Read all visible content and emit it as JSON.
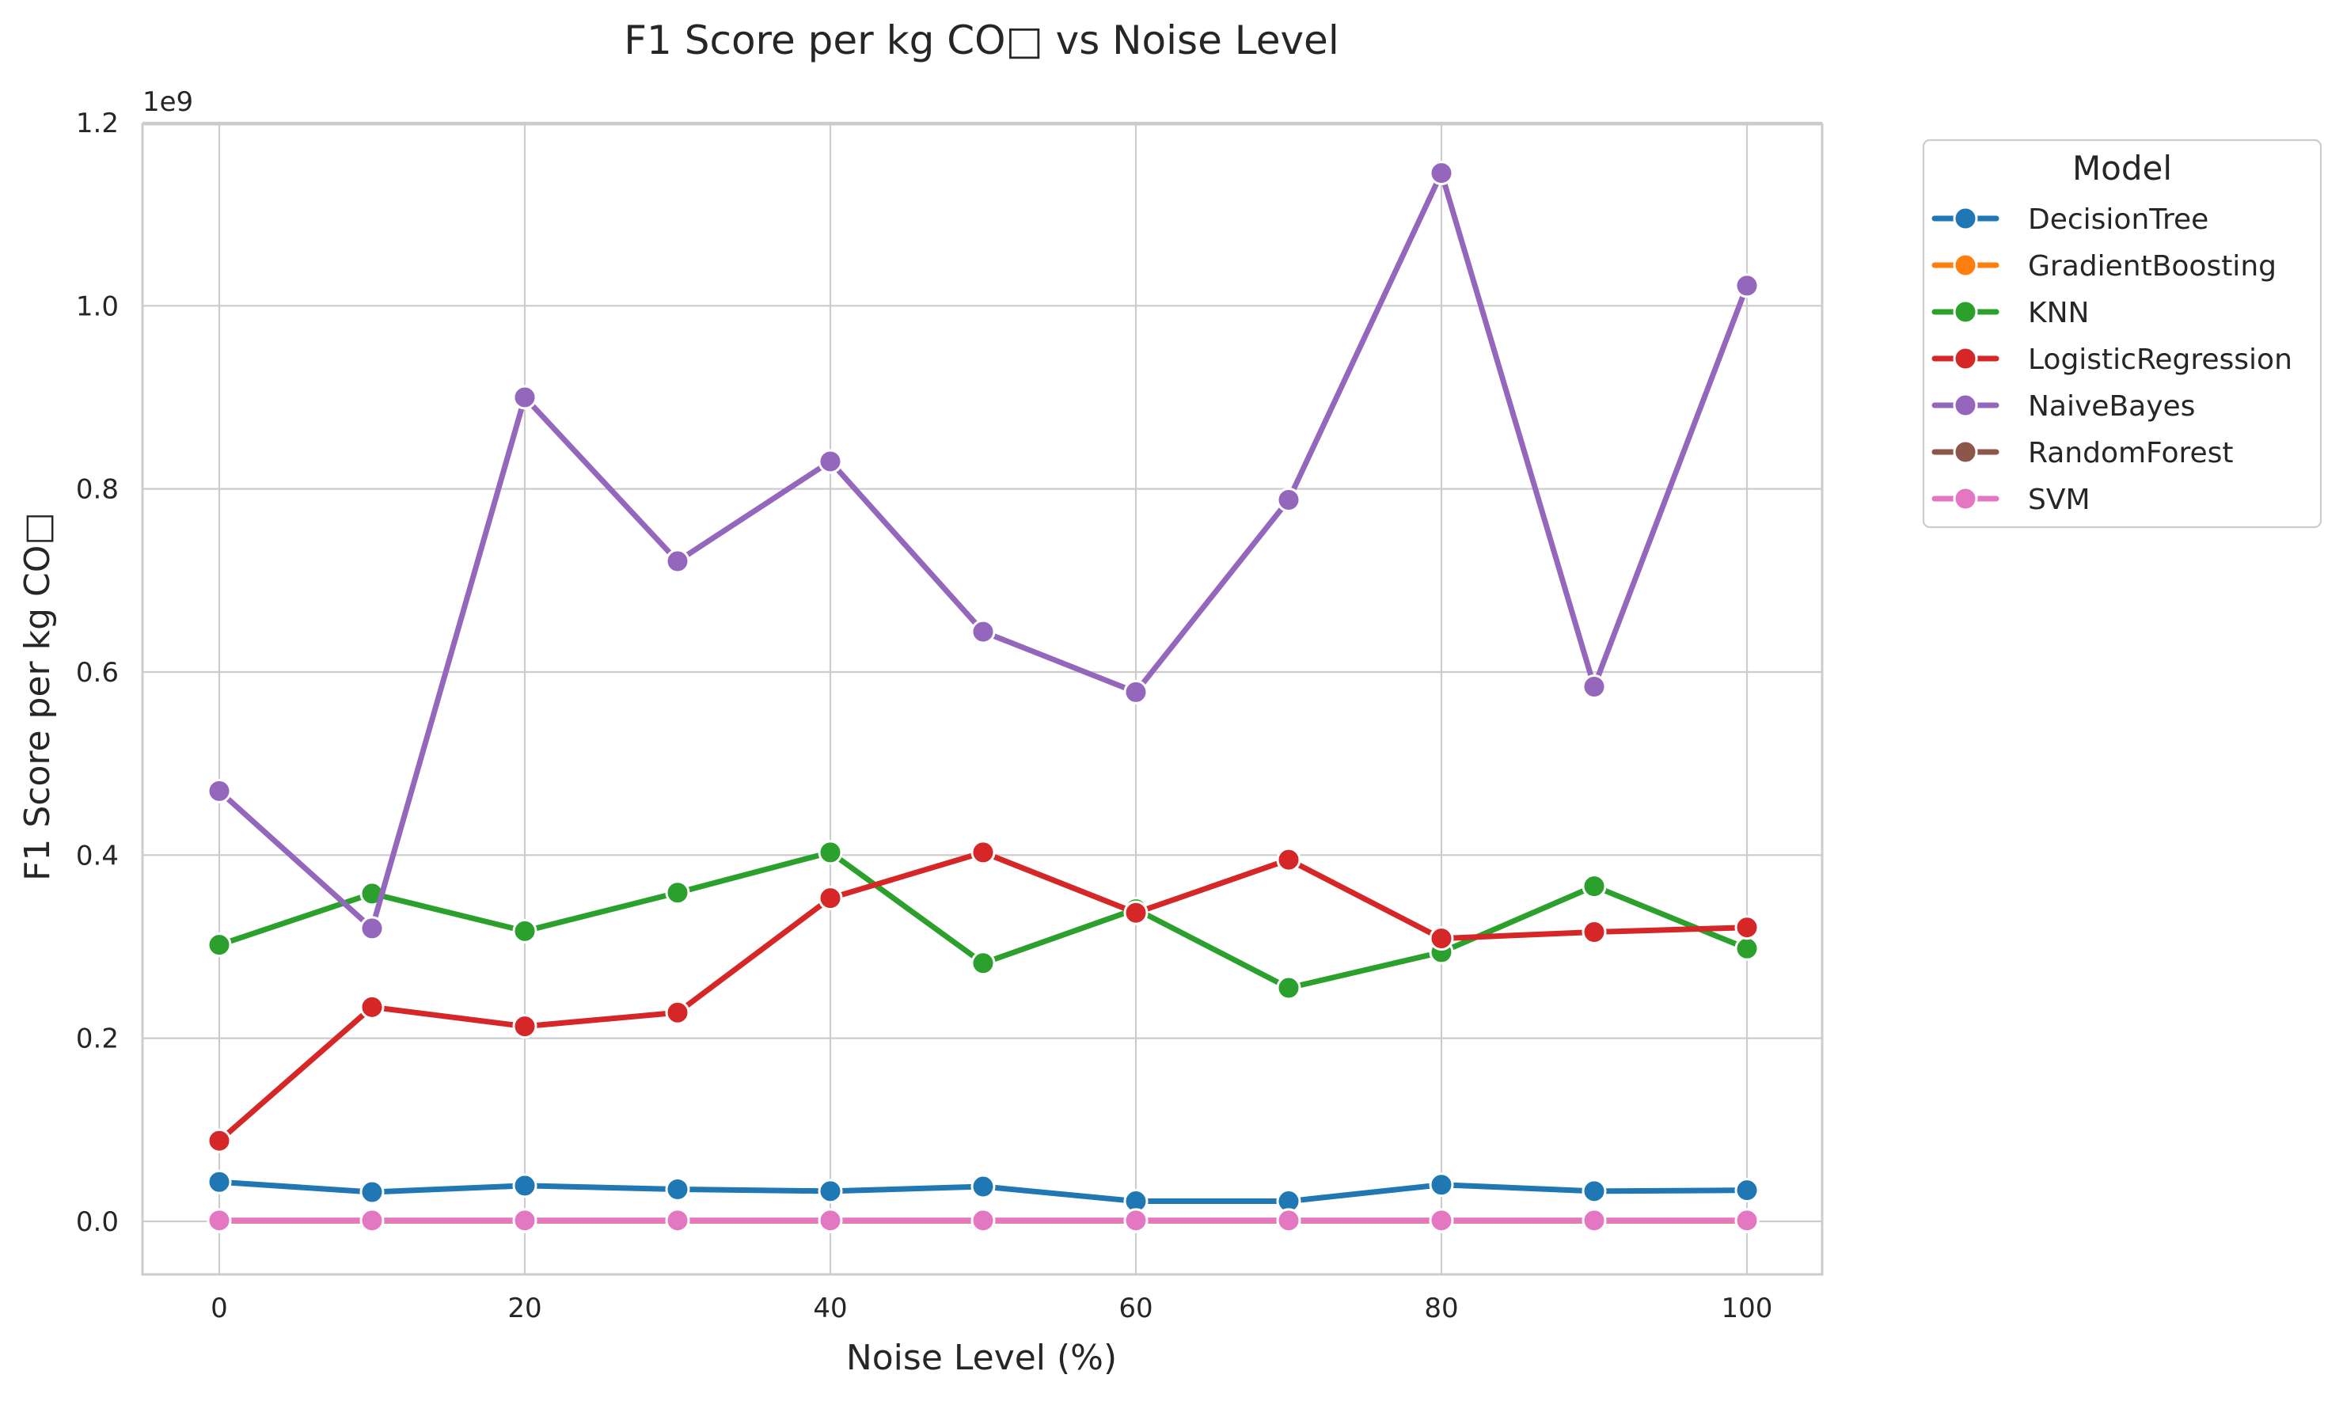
{
  "chart_data": {
    "type": "line",
    "title": "F1 Score per kg CO□ vs Noise Level",
    "xlabel": "Noise Level (%)",
    "ylabel": "F1 Score per kg CO□",
    "y_offset_label": "1e9",
    "xlim": [
      -5,
      105
    ],
    "ylim": [
      -0.055,
      1.2
    ],
    "x_ticks": [
      0,
      20,
      40,
      60,
      80,
      100
    ],
    "y_ticks": [
      0.0,
      0.2,
      0.4,
      0.6,
      0.8,
      1.0,
      1.2
    ],
    "y_tick_labels": [
      "0.0",
      "0.2",
      "0.4",
      "0.6",
      "0.8",
      "1.0",
      "1.2"
    ],
    "grid": true,
    "legend_title": "Model",
    "legend_position": "outside-top-right",
    "x": [
      0,
      10,
      20,
      30,
      40,
      50,
      60,
      70,
      80,
      90,
      100
    ],
    "series": [
      {
        "name": "DecisionTree",
        "color": "#1f77b4",
        "values": [
          0.043,
          0.032,
          0.039,
          0.035,
          0.033,
          0.038,
          0.022,
          0.022,
          0.04,
          0.033,
          0.034
        ]
      },
      {
        "name": "GradientBoosting",
        "color": "#ff7f0e",
        "values": [
          0.0005,
          0.0005,
          0.0005,
          0.0005,
          0.0005,
          0.0005,
          0.0005,
          0.0005,
          0.0005,
          0.0005,
          0.0005
        ]
      },
      {
        "name": "KNN",
        "color": "#2ca02c",
        "values": [
          0.302,
          0.358,
          0.317,
          0.359,
          0.403,
          0.282,
          0.341,
          0.255,
          0.294,
          0.366,
          0.298
        ]
      },
      {
        "name": "LogisticRegression",
        "color": "#d62728",
        "values": [
          0.088,
          0.234,
          0.213,
          0.228,
          0.353,
          0.403,
          0.337,
          0.395,
          0.309,
          0.316,
          0.321
        ]
      },
      {
        "name": "NaiveBayes",
        "color": "#9467bd",
        "values": [
          0.47,
          0.32,
          0.9,
          0.721,
          0.83,
          0.644,
          0.578,
          0.788,
          1.145,
          0.584,
          1.022
        ]
      },
      {
        "name": "RandomForest",
        "color": "#8c564b",
        "values": [
          0.001,
          0.001,
          0.001,
          0.001,
          0.001,
          0.001,
          0.001,
          0.001,
          0.001,
          0.001,
          0.001
        ]
      },
      {
        "name": "SVM",
        "color": "#e377c2",
        "values": [
          0.001,
          0.001,
          0.001,
          0.001,
          0.001,
          0.001,
          0.001,
          0.001,
          0.001,
          0.001,
          0.001
        ]
      }
    ]
  }
}
